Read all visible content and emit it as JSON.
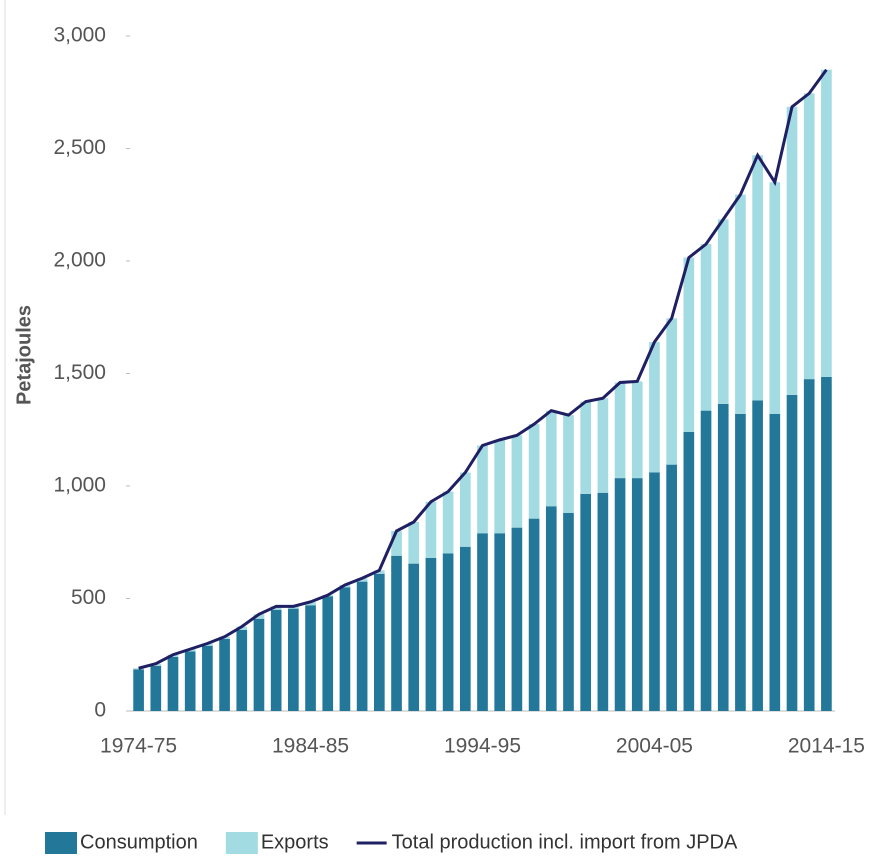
{
  "chart_data": {
    "type": "bar",
    "stacked": true,
    "y_label": "Petajoules",
    "categories": [
      "1974-75",
      null,
      null,
      null,
      null,
      null,
      null,
      null,
      null,
      null,
      "1984-85",
      null,
      null,
      null,
      null,
      null,
      null,
      null,
      null,
      null,
      "1994-95",
      null,
      null,
      null,
      null,
      null,
      null,
      null,
      null,
      null,
      "2004-05",
      null,
      null,
      null,
      null,
      null,
      null,
      null,
      null,
      null,
      "2014-15"
    ],
    "series": [
      {
        "name": "Consumption",
        "color": "#23789a",
        "values": [
          185,
          200,
          240,
          265,
          290,
          320,
          360,
          410,
          450,
          455,
          470,
          510,
          550,
          575,
          610,
          690,
          655,
          680,
          700,
          730,
          790,
          790,
          815,
          855,
          910,
          880,
          965,
          970,
          1035,
          1035,
          1060,
          1095,
          1240,
          1335,
          1365,
          1320,
          1380,
          1320,
          1405,
          1475,
          1485
        ]
      },
      {
        "name": "Exports",
        "color": "#a3dbe3",
        "values": [
          5,
          10,
          10,
          10,
          10,
          10,
          15,
          20,
          15,
          10,
          15,
          5,
          10,
          15,
          15,
          110,
          185,
          250,
          275,
          330,
          390,
          415,
          410,
          420,
          425,
          435,
          410,
          420,
          425,
          430,
          580,
          650,
          775,
          740,
          820,
          975,
          1090,
          1030,
          1280,
          1270,
          1365
        ]
      },
      {
        "name": "Total production incl. import from JPDA",
        "color": "#1f1f63",
        "type": "line",
        "values": [
          190,
          210,
          250,
          275,
          300,
          330,
          375,
          430,
          465,
          465,
          485,
          515,
          560,
          590,
          625,
          800,
          840,
          930,
          975,
          1060,
          1180,
          1205,
          1225,
          1275,
          1335,
          1315,
          1375,
          1390,
          1460,
          1465,
          1640,
          1745,
          2015,
          2075,
          2185,
          2295,
          2470,
          2350,
          2685,
          2745,
          2850
        ]
      }
    ],
    "ylim": [
      0,
      3000
    ],
    "yticks": [
      0,
      500,
      {
        "value": 1000,
        "label": "1,000"
      },
      {
        "value": 1500,
        "label": "1,500"
      },
      {
        "value": 2000,
        "label": "2,000"
      },
      {
        "value": 2500,
        "label": "2,500"
      },
      {
        "value": 3000,
        "label": "3,000"
      }
    ],
    "grid": false
  }
}
